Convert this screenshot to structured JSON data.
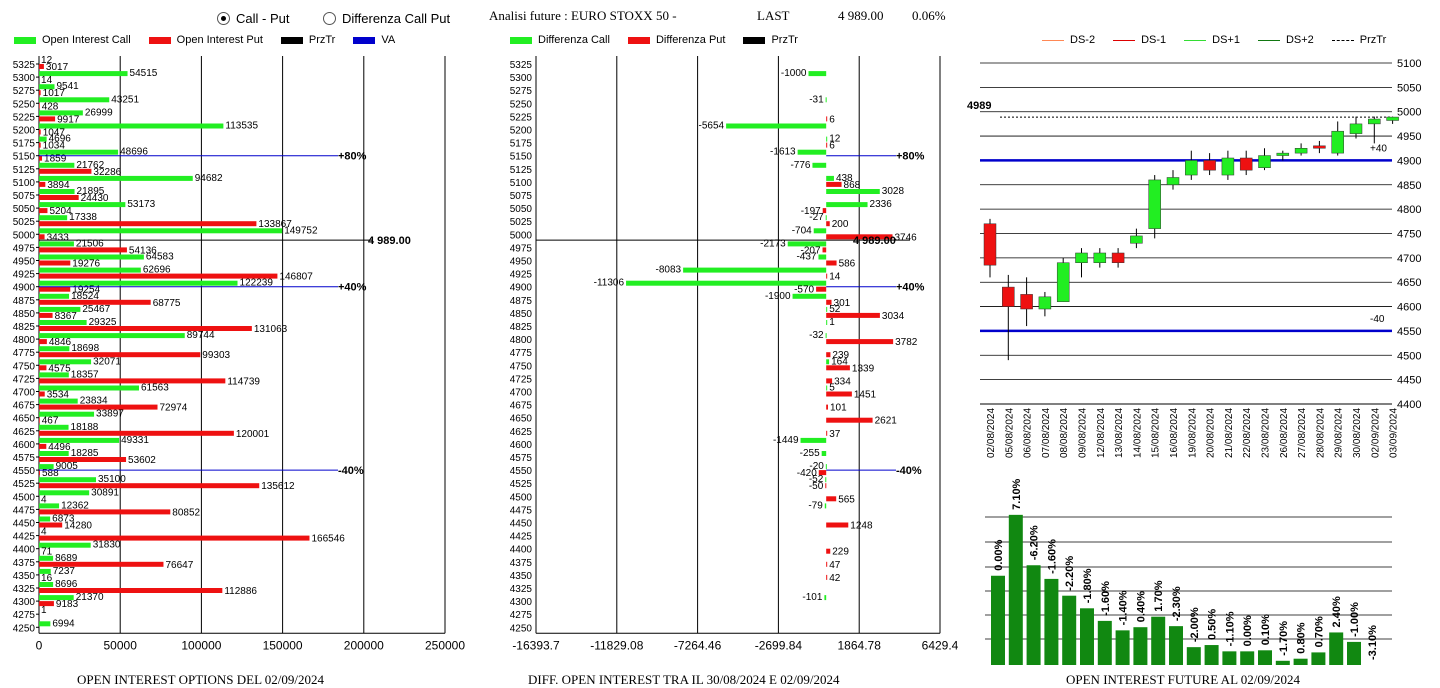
{
  "header": {
    "option_call_put": "Call - Put",
    "option_diff": "Differenza Call Put",
    "title": "Analisi future : EURO STOXX 50 -",
    "last_label": "LAST",
    "last_value": "4 989.00",
    "last_change": "0.06%"
  },
  "colors": {
    "call": "#22ee22",
    "put": "#ee1111",
    "przr": "#000000",
    "va": "#0000cc",
    "candle_up": "#22ee22",
    "candle_down": "#ee1111",
    "bar_green": "#118811"
  },
  "legend1": [
    {
      "label": "Open Interest Call",
      "color": "#22ee22"
    },
    {
      "label": "Open Interest Put",
      "color": "#ee1111"
    },
    {
      "label": "PrzTr",
      "color": "#000000"
    },
    {
      "label": "VA",
      "color": "#0000cc"
    }
  ],
  "legend2": [
    {
      "label": "Differenza Call",
      "color": "#22ee22"
    },
    {
      "label": "Differenza Put",
      "color": "#ee1111"
    },
    {
      "label": "PrzTr",
      "color": "#000000"
    }
  ],
  "legend3": [
    {
      "label": "DS-2",
      "color": "#ff8855"
    },
    {
      "label": "DS-1",
      "color": "#dd0000"
    },
    {
      "label": "DS+1",
      "color": "#33dd33"
    },
    {
      "label": "DS+2",
      "color": "#117711"
    },
    {
      "label": "PrzTr",
      "color": "#000000"
    }
  ],
  "captions": {
    "left": "OPEN INTEREST OPTIONS DEL 02/09/2024",
    "middle": "DIFF. OPEN INTEREST TRA IL 30/08/2024 E 02/09/2024",
    "right": "OPEN INTEREST FUTURE AL 02/09/2024"
  },
  "chart_data": [
    {
      "type": "bar",
      "orientation": "horizontal",
      "strikes": [
        5325,
        5300,
        5275,
        5250,
        5225,
        5200,
        5175,
        5150,
        5125,
        5100,
        5075,
        5050,
        5025,
        5000,
        4975,
        4950,
        4925,
        4900,
        4875,
        4850,
        4825,
        4800,
        4775,
        4750,
        4725,
        4700,
        4675,
        4650,
        4625,
        4600,
        4575,
        4550,
        4525,
        4500,
        4475,
        4450,
        4425,
        4400,
        4375,
        4350,
        4325,
        4300,
        4275,
        4250
      ],
      "series": [
        {
          "name": "Open Interest Call",
          "values": [
            12,
            54515,
            9541,
            43251,
            26999,
            113535,
            4696,
            48696,
            21762,
            94682,
            21895,
            53173,
            17338,
            149752,
            21506,
            64583,
            62696,
            122239,
            18524,
            25467,
            29325,
            89744,
            18698,
            32071,
            18357,
            61563,
            23834,
            33897,
            18188,
            49331,
            18285,
            9005,
            35100,
            30891,
            12362,
            6873,
            4,
            31830,
            8689,
            7237,
            8696,
            21370,
            1,
            6994
          ]
        },
        {
          "name": "Open Interest Put",
          "values": [
            3017,
            14,
            1017,
            428,
            9917,
            1047,
            1034,
            1859,
            32286,
            3894,
            24430,
            5204,
            133867,
            3433,
            54136,
            19276,
            146807,
            19254,
            68775,
            8367,
            131063,
            4846,
            99303,
            4575,
            114739,
            3534,
            72974,
            467,
            120001,
            4496,
            53602,
            588,
            135612,
            4,
            80852,
            14280,
            166546,
            71,
            76647,
            16,
            112886,
            9183,
            0,
            0
          ]
        }
      ],
      "price_line": {
        "label": "4 989.00",
        "value": 4989
      },
      "va_levels": [
        {
          "label": "+80%",
          "strike": 5150
        },
        {
          "label": "+40%",
          "strike": 4900
        },
        {
          "label": "-40%",
          "strike": 4550
        }
      ],
      "xticks": [
        "0",
        "50000",
        "100000",
        "150000",
        "200000",
        "250000"
      ],
      "xlim": [
        0,
        250000
      ]
    },
    {
      "type": "bar",
      "orientation": "horizontal",
      "strikes": [
        5325,
        5300,
        5275,
        5250,
        5225,
        5200,
        5175,
        5150,
        5125,
        5100,
        5075,
        5050,
        5025,
        5000,
        4975,
        4950,
        4925,
        4900,
        4875,
        4850,
        4825,
        4800,
        4775,
        4750,
        4725,
        4700,
        4675,
        4650,
        4625,
        4600,
        4575,
        4550,
        4525,
        4500,
        4475,
        4450,
        4425,
        4400,
        4375,
        4350,
        4325,
        4300,
        4275,
        4250
      ],
      "series": [
        {
          "name": "Differenza Call",
          "values": [
            null,
            -1000,
            null,
            -31,
            null,
            -5654,
            12,
            -1613,
            -776,
            438,
            3028,
            2336,
            -27,
            -704,
            -2173,
            -437,
            -8083,
            -11306,
            -1900,
            52,
            1,
            -32,
            null,
            164,
            null,
            5,
            null,
            null,
            null,
            -1449,
            -255,
            -20,
            -52,
            null,
            -79,
            null,
            null,
            null,
            null,
            null,
            null,
            -101,
            null,
            null
          ]
        },
        {
          "name": "Differenza Put",
          "values": [
            null,
            null,
            null,
            null,
            6,
            null,
            6,
            null,
            null,
            868,
            null,
            -197,
            200,
            3746,
            -207,
            586,
            14,
            -570,
            301,
            3034,
            null,
            3782,
            239,
            1339,
            334,
            1451,
            101,
            2621,
            37,
            null,
            null,
            -420,
            -50,
            565,
            null,
            1248,
            null,
            229,
            47,
            42,
            null,
            null,
            null,
            null
          ]
        }
      ],
      "price_line": {
        "label": "4 989.00",
        "value": 4989
      },
      "va_levels": [
        {
          "label": "+80%",
          "strike": 5150
        },
        {
          "label": "+40%",
          "strike": 4900
        },
        {
          "label": "-40%",
          "strike": 4550
        }
      ],
      "xticks": [
        "-16393.7",
        "-11829.08",
        "-7264.46",
        "-2699.84",
        "1864.78",
        "6429.4"
      ],
      "xlim": [
        -16393.7,
        6429.4
      ]
    },
    {
      "type": "candlestick",
      "dates": [
        "02/08/2024",
        "05/08/2024",
        "06/08/2024",
        "07/08/2024",
        "08/08/2024",
        "09/08/2024",
        "12/08/2024",
        "13/08/2024",
        "14/08/2024",
        "15/08/2024",
        "16/08/2024",
        "19/08/2024",
        "20/08/2024",
        "21/08/2024",
        "22/08/2024",
        "23/08/2024",
        "26/08/2024",
        "27/08/2024",
        "28/08/2024",
        "29/08/2024",
        "30/08/2024",
        "02/09/2024",
        "03/09/2024"
      ],
      "open": [
        4770,
        4640,
        4625,
        4595,
        4610,
        4690,
        4690,
        4710,
        4730,
        4760,
        4850,
        4870,
        4900,
        4870,
        4905,
        4885,
        4910,
        4915,
        4930,
        4915,
        4955,
        4975,
        4982
      ],
      "close": [
        4685,
        4600,
        4595,
        4620,
        4690,
        4710,
        4710,
        4690,
        4745,
        4860,
        4865,
        4900,
        4880,
        4905,
        4880,
        4910,
        4915,
        4925,
        4925,
        4960,
        4975,
        4985,
        4989
      ],
      "high": [
        4780,
        4665,
        4660,
        4630,
        4700,
        4720,
        4720,
        4720,
        4760,
        4870,
        4880,
        4920,
        4915,
        4920,
        4920,
        4925,
        4920,
        4935,
        4940,
        4980,
        4990,
        4990,
        4990
      ],
      "low": [
        4660,
        4490,
        4560,
        4580,
        4610,
        4660,
        4680,
        4680,
        4720,
        4740,
        4840,
        4860,
        4870,
        4860,
        4870,
        4880,
        4900,
        4910,
        4915,
        4910,
        4945,
        4935,
        4975
      ],
      "price_label": "4989",
      "ds_lines": [
        {
          "value": 4900,
          "label": "+40"
        },
        {
          "value": 4550,
          "label": "-40"
        }
      ],
      "yticks": [
        "4400",
        "4450",
        "4500",
        "4550",
        "4600",
        "4650",
        "4700",
        "4750",
        "4800",
        "4850",
        "4900",
        "4950",
        "5000",
        "5050",
        "5100"
      ],
      "ylim": [
        4400,
        5100
      ]
    },
    {
      "type": "bar",
      "series": [
        {
          "name": "",
          "values": [
            0.0,
            7.1,
            -6.2,
            -1.6,
            -2.2,
            -1.8,
            -1.6,
            -1.4,
            0.4,
            1.7,
            -2.3,
            -2.0,
            0.5,
            -1.1,
            0.0,
            0.1,
            -1.7,
            0.8,
            0.7,
            2.4,
            -1.0,
            -3.1
          ]
        }
      ],
      "labels": [
        "0.00%",
        "7.10%",
        "-6.20%",
        "-1.60%",
        "-2.20%",
        "-1.80%",
        "-1.60%",
        "-1.40%",
        "0.40%",
        "1.70%",
        "-2.30%",
        "-2.00%",
        "0.50%",
        "-1.10%",
        "0.00%",
        "0.10%",
        "-1.70%",
        "0.80%",
        "0.70%",
        "2.40%",
        "-1.00%",
        "-3.10%"
      ],
      "heights": [
        85,
        143,
        95,
        82,
        66,
        54,
        42,
        33,
        36,
        46,
        37,
        17,
        19,
        13,
        13,
        14,
        4,
        6,
        12,
        31,
        22,
        0
      ]
    }
  ]
}
